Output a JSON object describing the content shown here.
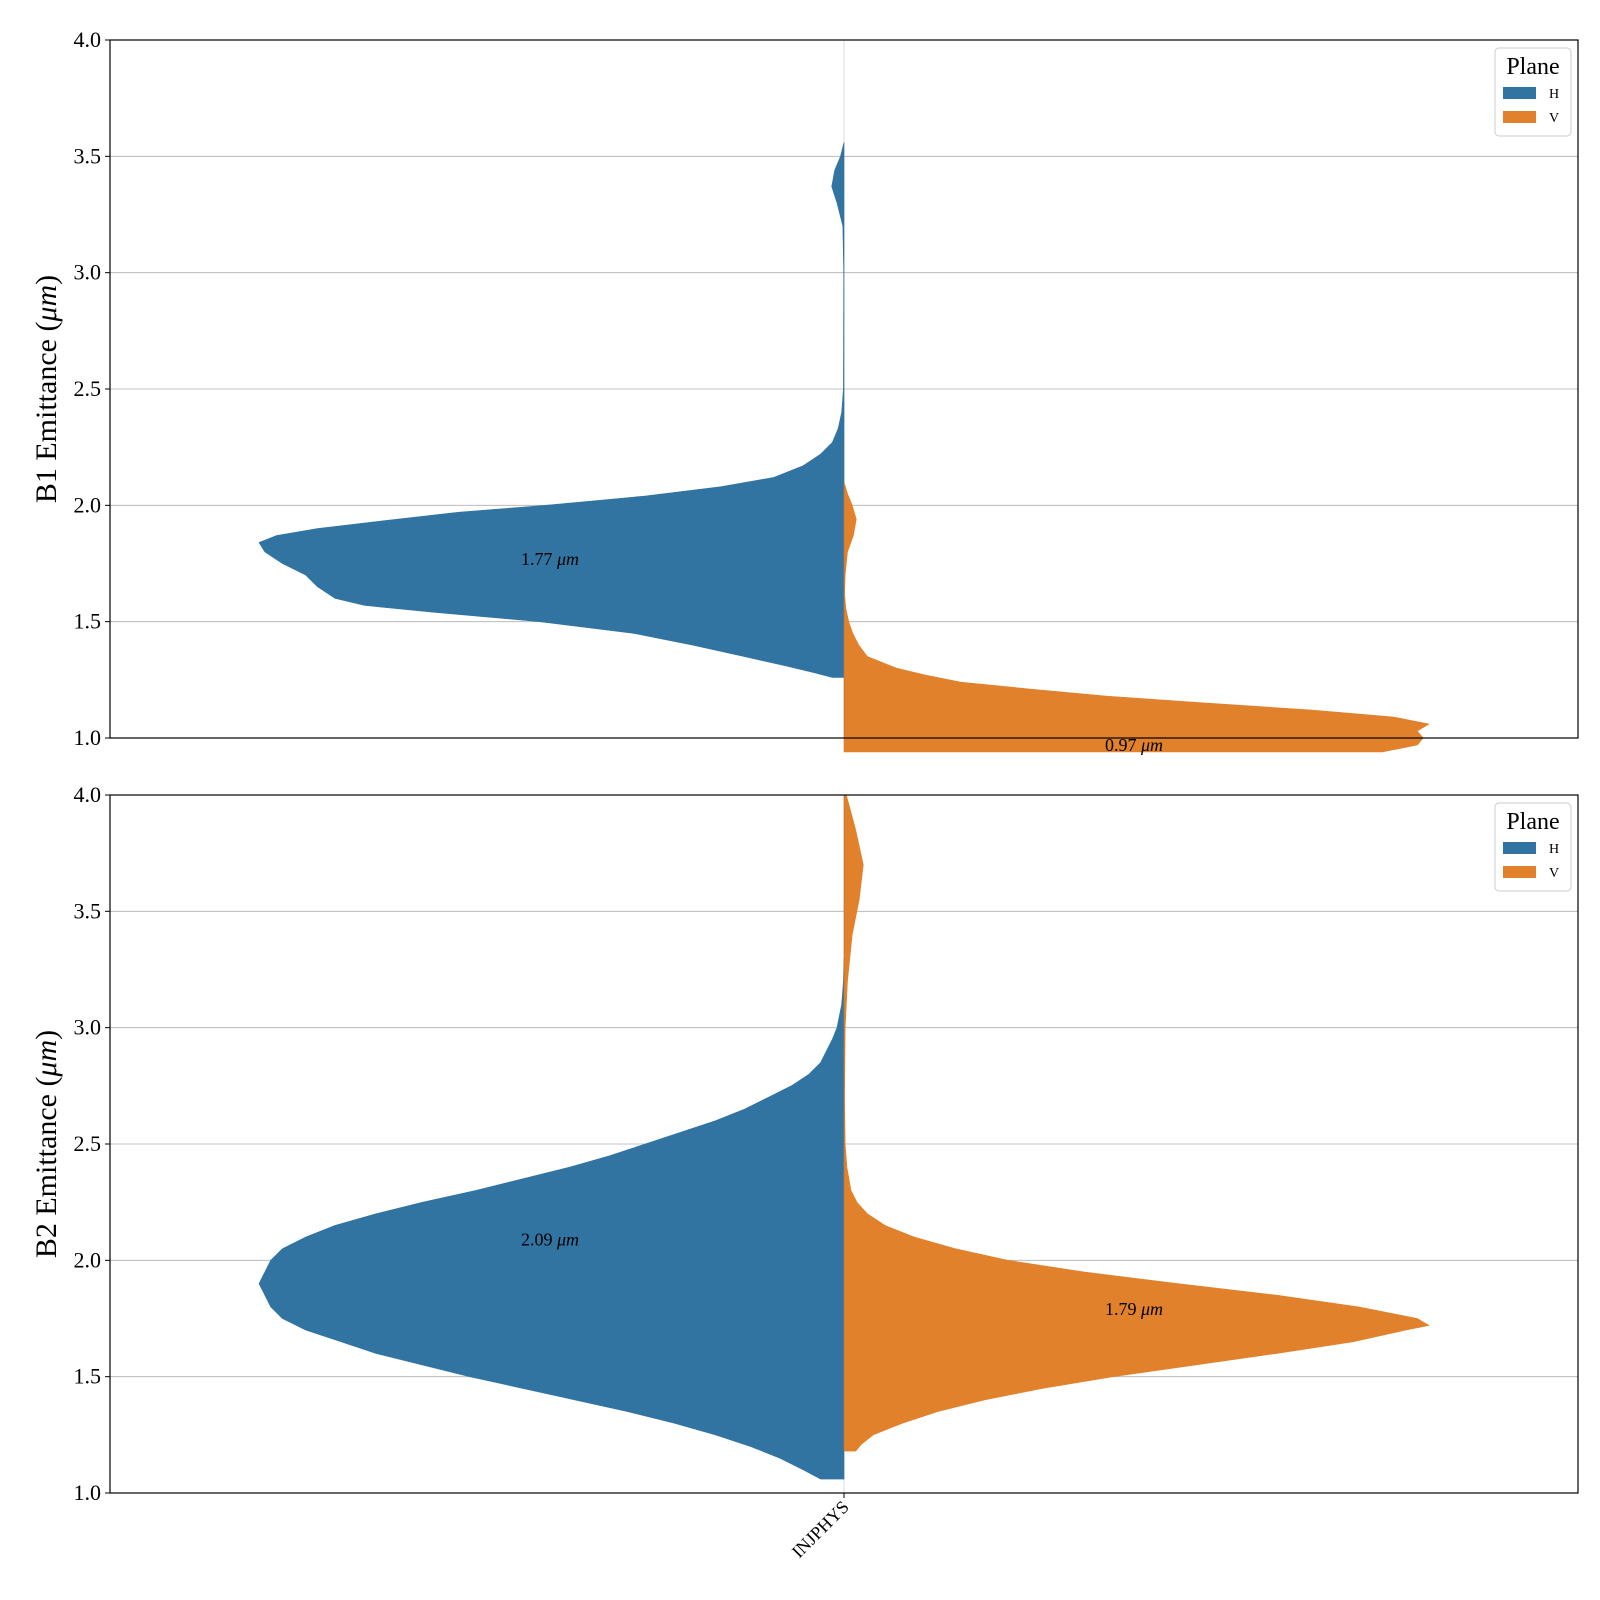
{
  "chart_data": [
    {
      "type": "violin",
      "ylabel": "B1 Emittance ($\\mu m$)",
      "ylabel_prefix": "B1 Emittance (",
      "ylabel_mu": "μm",
      "ylabel_suffix": ")",
      "ylim": [
        1.0,
        4.0
      ],
      "yticks": [
        "1.0",
        "1.5",
        "2.0",
        "2.5",
        "3.0",
        "3.5",
        "4.0"
      ],
      "ytick_values": [
        1.0,
        1.5,
        2.0,
        2.5,
        3.0,
        3.5,
        4.0
      ],
      "categories": [
        "INJPHYS"
      ],
      "grid": "y",
      "legend": {
        "title": "Plane",
        "placement": "top-right",
        "entries": [
          "H",
          "V"
        ]
      },
      "series": [
        {
          "name": "H",
          "color": "#3274a1",
          "side": "left",
          "median": 1.77,
          "annotation": "1.77",
          "profile": [
            [
              1.26,
              0.02
            ],
            [
              1.28,
              0.05
            ],
            [
              1.31,
              0.1
            ],
            [
              1.35,
              0.17
            ],
            [
              1.4,
              0.26
            ],
            [
              1.45,
              0.36
            ],
            [
              1.5,
              0.52
            ],
            [
              1.54,
              0.7
            ],
            [
              1.57,
              0.82
            ],
            [
              1.6,
              0.87
            ],
            [
              1.65,
              0.9
            ],
            [
              1.7,
              0.92
            ],
            [
              1.75,
              0.96
            ],
            [
              1.8,
              0.99
            ],
            [
              1.84,
              1.0
            ],
            [
              1.87,
              0.97
            ],
            [
              1.9,
              0.9
            ],
            [
              1.93,
              0.8
            ],
            [
              1.97,
              0.66
            ],
            [
              2.0,
              0.51
            ],
            [
              2.04,
              0.34
            ],
            [
              2.08,
              0.21
            ],
            [
              2.12,
              0.12
            ],
            [
              2.17,
              0.07
            ],
            [
              2.22,
              0.04
            ],
            [
              2.27,
              0.02
            ],
            [
              2.33,
              0.01
            ],
            [
              2.4,
              0.004
            ],
            [
              2.5,
              0.001
            ],
            [
              3.0,
              0.0005
            ],
            [
              3.2,
              0.002
            ],
            [
              3.3,
              0.012
            ],
            [
              3.37,
              0.021
            ],
            [
              3.44,
              0.016
            ],
            [
              3.5,
              0.006
            ],
            [
              3.56,
              0.0
            ]
          ]
        },
        {
          "name": "V",
          "color": "#e1812c",
          "side": "right",
          "median": 0.97,
          "annotation": "0.97",
          "profile": [
            [
              0.94,
              0.92
            ],
            [
              0.97,
              0.98
            ],
            [
              1.0,
              0.99
            ],
            [
              1.03,
              0.98
            ],
            [
              1.06,
              1.0
            ],
            [
              1.09,
              0.94
            ],
            [
              1.12,
              0.8
            ],
            [
              1.15,
              0.62
            ],
            [
              1.18,
              0.45
            ],
            [
              1.21,
              0.32
            ],
            [
              1.24,
              0.2
            ],
            [
              1.27,
              0.14
            ],
            [
              1.3,
              0.09
            ],
            [
              1.35,
              0.04
            ],
            [
              1.4,
              0.025
            ],
            [
              1.45,
              0.015
            ],
            [
              1.5,
              0.008
            ],
            [
              1.56,
              0.003
            ],
            [
              1.62,
              0.001
            ],
            [
              1.7,
              0.002
            ],
            [
              1.8,
              0.006
            ],
            [
              1.87,
              0.016
            ],
            [
              1.94,
              0.021
            ],
            [
              2.0,
              0.014
            ],
            [
              2.05,
              0.006
            ],
            [
              2.1,
              0.0
            ]
          ]
        }
      ]
    },
    {
      "type": "violin",
      "ylabel": "B2 Emittance ($\\mu m$)",
      "ylabel_prefix": "B2 Emittance (",
      "ylabel_mu": "μm",
      "ylabel_suffix": ")",
      "ylim": [
        1.0,
        4.0
      ],
      "yticks": [
        "1.0",
        "1.5",
        "2.0",
        "2.5",
        "3.0",
        "3.5",
        "4.0"
      ],
      "ytick_values": [
        1.0,
        1.5,
        2.0,
        2.5,
        3.0,
        3.5,
        4.0
      ],
      "categories": [
        "INJPHYS"
      ],
      "grid": "y",
      "legend": {
        "title": "Plane",
        "placement": "top-right",
        "entries": [
          "H",
          "V"
        ]
      },
      "series": [
        {
          "name": "H",
          "color": "#3274a1",
          "side": "left",
          "median": 2.09,
          "annotation": "2.09",
          "profile": [
            [
              1.06,
              0.04
            ],
            [
              1.1,
              0.07
            ],
            [
              1.15,
              0.11
            ],
            [
              1.2,
              0.16
            ],
            [
              1.25,
              0.22
            ],
            [
              1.3,
              0.29
            ],
            [
              1.35,
              0.37
            ],
            [
              1.4,
              0.46
            ],
            [
              1.45,
              0.55
            ],
            [
              1.5,
              0.64
            ],
            [
              1.55,
              0.72
            ],
            [
              1.6,
              0.8
            ],
            [
              1.65,
              0.86
            ],
            [
              1.7,
              0.92
            ],
            [
              1.75,
              0.96
            ],
            [
              1.8,
              0.98
            ],
            [
              1.85,
              0.99
            ],
            [
              1.9,
              1.0
            ],
            [
              1.95,
              0.99
            ],
            [
              2.0,
              0.98
            ],
            [
              2.05,
              0.96
            ],
            [
              2.1,
              0.92
            ],
            [
              2.15,
              0.87
            ],
            [
              2.2,
              0.8
            ],
            [
              2.25,
              0.72
            ],
            [
              2.3,
              0.63
            ],
            [
              2.35,
              0.55
            ],
            [
              2.4,
              0.47
            ],
            [
              2.45,
              0.4
            ],
            [
              2.5,
              0.34
            ],
            [
              2.55,
              0.28
            ],
            [
              2.6,
              0.22
            ],
            [
              2.65,
              0.17
            ],
            [
              2.7,
              0.13
            ],
            [
              2.75,
              0.09
            ],
            [
              2.8,
              0.06
            ],
            [
              2.85,
              0.04
            ],
            [
              2.9,
              0.03
            ],
            [
              2.95,
              0.02
            ],
            [
              3.0,
              0.012
            ],
            [
              3.1,
              0.004
            ],
            [
              3.2,
              0.001
            ],
            [
              3.3,
              0.0
            ]
          ]
        },
        {
          "name": "V",
          "color": "#e1812c",
          "side": "right",
          "median": 1.79,
          "annotation": "1.79",
          "profile": [
            [
              1.18,
              0.02
            ],
            [
              1.21,
              0.03
            ],
            [
              1.25,
              0.05
            ],
            [
              1.3,
              0.1
            ],
            [
              1.35,
              0.16
            ],
            [
              1.4,
              0.24
            ],
            [
              1.45,
              0.34
            ],
            [
              1.5,
              0.46
            ],
            [
              1.55,
              0.6
            ],
            [
              1.6,
              0.74
            ],
            [
              1.65,
              0.87
            ],
            [
              1.7,
              0.96
            ],
            [
              1.72,
              1.0
            ],
            [
              1.75,
              0.98
            ],
            [
              1.8,
              0.88
            ],
            [
              1.85,
              0.74
            ],
            [
              1.9,
              0.57
            ],
            [
              1.95,
              0.41
            ],
            [
              2.0,
              0.28
            ],
            [
              2.05,
              0.19
            ],
            [
              2.1,
              0.12
            ],
            [
              2.15,
              0.07
            ],
            [
              2.2,
              0.04
            ],
            [
              2.25,
              0.022
            ],
            [
              2.3,
              0.012
            ],
            [
              2.4,
              0.005
            ],
            [
              2.5,
              0.002
            ],
            [
              2.7,
              0.001
            ],
            [
              3.0,
              0.002
            ],
            [
              3.2,
              0.006
            ],
            [
              3.4,
              0.014
            ],
            [
              3.55,
              0.026
            ],
            [
              3.7,
              0.033
            ],
            [
              3.85,
              0.02
            ],
            [
              4.0,
              0.004
            ]
          ]
        }
      ]
    }
  ],
  "xticks": [
    "INJPHYS"
  ],
  "colors": {
    "H": "#3274a1",
    "V": "#e1812c",
    "grid": "#b0b0b0",
    "axis": "#000000"
  }
}
